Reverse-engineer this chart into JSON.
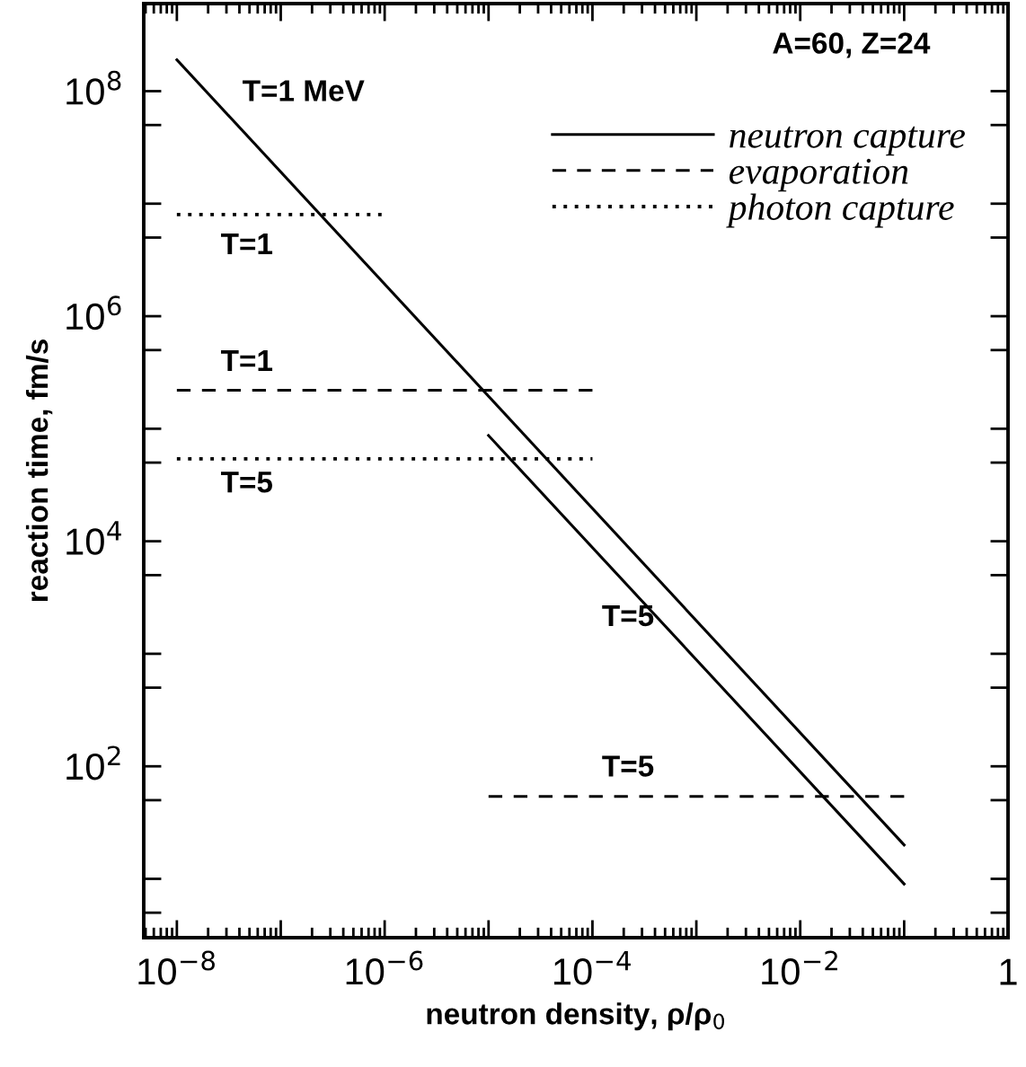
{
  "chart_data": {
    "type": "line",
    "xlabel": "neutron density, ρ/ρ$_{0}$",
    "ylabel": "reaction time, fm/s",
    "log": "xy",
    "legend": "top right",
    "grid": false,
    "xlim": [
      4.8e-09,
      1
    ],
    "ylim": [
      3,
      600000000.0
    ],
    "xticks": [
      {
        "value": 1e-08,
        "label": "10$^{−8}$"
      },
      {
        "value": 1e-07,
        "label": null
      },
      {
        "value": 1e-06,
        "label": "10$^{−6}$"
      },
      {
        "value": 1e-05,
        "label": null
      },
      {
        "value": 0.0001,
        "label": "10$^{−4}$"
      },
      {
        "value": 0.001,
        "label": null
      },
      {
        "value": 0.01,
        "label": "10$^{−2}$"
      },
      {
        "value": 0.1,
        "label": null
      },
      1
    ],
    "yticks": [
      {
        "value": 5,
        "label": null
      },
      {
        "value": 10,
        "label": null
      },
      {
        "value": 50,
        "label": null
      },
      {
        "value": 100,
        "label": "10$^{2}$"
      },
      {
        "value": 500,
        "label": null
      },
      {
        "value": 1000,
        "label": null
      },
      {
        "value": 5000,
        "label": null
      },
      {
        "value": 10000,
        "label": "10$^{4}$"
      },
      {
        "value": 50000,
        "label": null
      },
      {
        "value": 100000,
        "label": null
      },
      {
        "value": 500000,
        "label": null
      },
      {
        "value": 1000000,
        "label": "10$^{6}$"
      },
      {
        "value": 5000000,
        "label": null
      },
      {
        "value": 10000000,
        "label": null
      },
      {
        "value": 50000000,
        "label": null
      },
      {
        "value": 100000000,
        "label": "10$^{8}$"
      }
    ],
    "series": [
      {
        "name": "neutron capture",
        "color": "#000000",
        "line_style": "solid",
        "x": [
          1e-08,
          0.1
        ],
        "values": [
          190000000.0,
          20
        ]
      },
      {
        "color": "#000000",
        "line_style": "solid",
        "x": [
          1e-05,
          0.1
        ],
        "values": [
          87000.0,
          9
        ]
      },
      {
        "name": "evaporation",
        "color": "#000000",
        "line_style": "dashed",
        "x": [
          1e-08,
          0.0001
        ],
        "values": [
          220000.0,
          220000.0
        ]
      },
      {
        "color": "#000000",
        "line_style": "dashed",
        "x": [
          1e-05,
          0.1
        ],
        "values": [
          54,
          54
        ]
      },
      {
        "name": "photon capture",
        "color": "#000000",
        "line_style": "dotted",
        "x": [
          1e-08,
          1e-06
        ],
        "values": [
          8000000.0,
          8000000.0
        ]
      },
      {
        "color": "#000000",
        "line_style": "dotted",
        "x": [
          1e-08,
          0.0001
        ],
        "values": [
          54000.0,
          54000.0
        ]
      }
    ],
    "annotations": [
      "T=1 MeV",
      "T=1",
      "T=1",
      "T=5",
      "T=5",
      "T=5",
      "A=60, Z=24"
    ]
  }
}
